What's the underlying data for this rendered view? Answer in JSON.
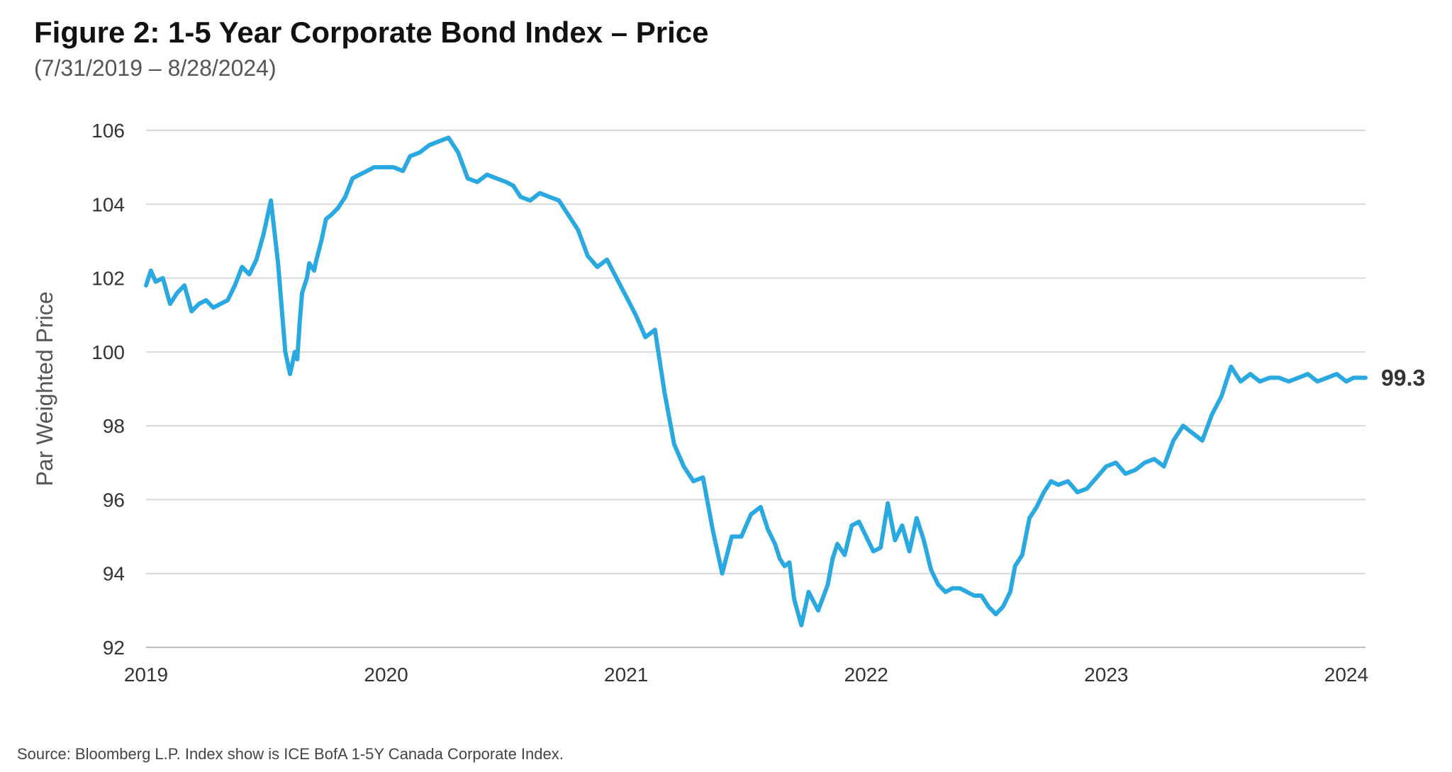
{
  "title": "Figure 2: 1-5 Year Corporate Bond Index – Price",
  "subtitle": "(7/31/2019 – 8/28/2024)",
  "source": "Source: Bloomberg L.P. Index show is ICE BofA 1-5Y Canada Corporate Index.",
  "colors": {
    "line": "#2AA8E0",
    "grid": "#D9D9D9",
    "axis": "#BFBFBF"
  },
  "chart_data": {
    "type": "line",
    "ylabel": "Par Weighted Price",
    "xlabel": "",
    "ylim": [
      92,
      106
    ],
    "xlim": [
      2019.0,
      2024.08
    ],
    "yticks": [
      92,
      94,
      96,
      98,
      100,
      102,
      104,
      106
    ],
    "xticks": [
      2019,
      2020,
      2021,
      2022,
      2023,
      2024
    ],
    "xtick_labels": [
      "2019",
      "2020",
      "2021",
      "2022",
      "2023",
      "2024"
    ],
    "grid": true,
    "end_label": "99.3",
    "series": [
      {
        "name": "",
        "x": [
          2019.0,
          2019.02,
          2019.04,
          2019.07,
          2019.1,
          2019.13,
          2019.16,
          2019.19,
          2019.22,
          2019.25,
          2019.28,
          2019.31,
          2019.34,
          2019.37,
          2019.4,
          2019.43,
          2019.46,
          2019.49,
          2019.52,
          2019.55,
          2019.58,
          2019.6,
          2019.62,
          2019.63,
          2019.64,
          2019.65,
          2019.66,
          2019.67,
          2019.68,
          2019.7,
          2019.71,
          2019.73,
          2019.75,
          2019.77,
          2019.8,
          2019.83,
          2019.86,
          2019.89,
          2019.92,
          2019.95,
          2019.99,
          2020.03,
          2020.07,
          2020.1,
          2020.14,
          2020.18,
          2020.22,
          2020.26,
          2020.3,
          2020.34,
          2020.38,
          2020.42,
          2020.46,
          2020.5,
          2020.53,
          2020.56,
          2020.6,
          2020.64,
          2020.68,
          2020.72,
          2020.76,
          2020.8,
          2020.84,
          2020.88,
          2020.92,
          2020.96,
          2021.0,
          2021.04,
          2021.08,
          2021.12,
          2021.16,
          2021.2,
          2021.24,
          2021.28,
          2021.32,
          2021.36,
          2021.4,
          2021.44,
          2021.48,
          2021.52,
          2021.56,
          2021.59,
          2021.62,
          2021.64,
          2021.66,
          2021.68,
          2021.7,
          2021.73,
          2021.76,
          2021.8,
          2021.84,
          2021.86,
          2021.88,
          2021.91,
          2021.94,
          2021.97,
          2022.0,
          2022.03,
          2022.06,
          2022.09,
          2022.12,
          2022.15,
          2022.18,
          2022.21,
          2022.24,
          2022.27,
          2022.3,
          2022.33,
          2022.36,
          2022.39,
          2022.42,
          2022.45,
          2022.48,
          2022.51,
          2022.54,
          2022.57,
          2022.6,
          2022.62,
          2022.65,
          2022.68,
          2022.71,
          2022.74,
          2022.77,
          2022.8,
          2022.84,
          2022.88,
          2022.92,
          2022.96,
          2023.0,
          2023.04,
          2023.08,
          2023.12,
          2023.16,
          2023.2,
          2023.24,
          2023.28,
          2023.32,
          2023.36,
          2023.4,
          2023.44,
          2023.48,
          2023.52,
          2023.56,
          2023.6,
          2023.64,
          2023.68,
          2023.72,
          2023.76,
          2023.8,
          2023.84,
          2023.88,
          2023.92,
          2023.96,
          2024.0,
          2024.03,
          2024.06,
          2024.08
        ],
        "y": [
          101.8,
          102.2,
          101.9,
          102.0,
          101.3,
          101.6,
          101.8,
          101.1,
          101.3,
          101.4,
          101.2,
          101.3,
          101.4,
          101.8,
          102.3,
          102.1,
          102.5,
          103.2,
          104.1,
          102.4,
          100.0,
          99.4,
          100.0,
          99.8,
          100.8,
          101.6,
          101.8,
          102.0,
          102.4,
          102.2,
          102.5,
          103.0,
          103.6,
          103.7,
          103.9,
          104.2,
          104.7,
          104.8,
          104.9,
          105.0,
          105.0,
          105.0,
          104.9,
          105.3,
          105.4,
          105.6,
          105.7,
          105.8,
          105.4,
          104.7,
          104.6,
          104.8,
          104.7,
          104.6,
          104.5,
          104.2,
          104.1,
          104.3,
          104.2,
          104.1,
          103.7,
          103.3,
          102.6,
          102.3,
          102.5,
          102.0,
          101.5,
          101.0,
          100.4,
          100.6,
          98.9,
          97.5,
          96.9,
          96.5,
          96.6,
          95.2,
          94.0,
          95.0,
          95.0,
          95.6,
          95.8,
          95.2,
          94.8,
          94.4,
          94.2,
          94.3,
          93.3,
          92.6,
          93.5,
          93.0,
          93.7,
          94.4,
          94.8,
          94.5,
          95.3,
          95.4,
          95.0,
          94.6,
          94.7,
          95.9,
          94.9,
          95.3,
          94.6,
          95.5,
          94.9,
          94.1,
          93.7,
          93.5,
          93.6,
          93.6,
          93.5,
          93.4,
          93.4,
          93.1,
          92.9,
          93.1,
          93.5,
          94.2,
          94.5,
          95.5,
          95.8,
          96.2,
          96.5,
          96.4,
          96.5,
          96.2,
          96.3,
          96.6,
          96.9,
          97.0,
          96.7,
          96.8,
          97.0,
          97.1,
          96.9,
          97.6,
          98.0,
          97.8,
          97.6,
          98.3,
          98.8,
          99.6,
          99.2,
          99.4,
          99.2,
          99.3,
          99.3,
          99.2,
          99.3,
          99.4,
          99.2,
          99.3,
          99.4,
          99.2,
          99.3,
          99.3,
          99.3
        ]
      }
    ]
  }
}
